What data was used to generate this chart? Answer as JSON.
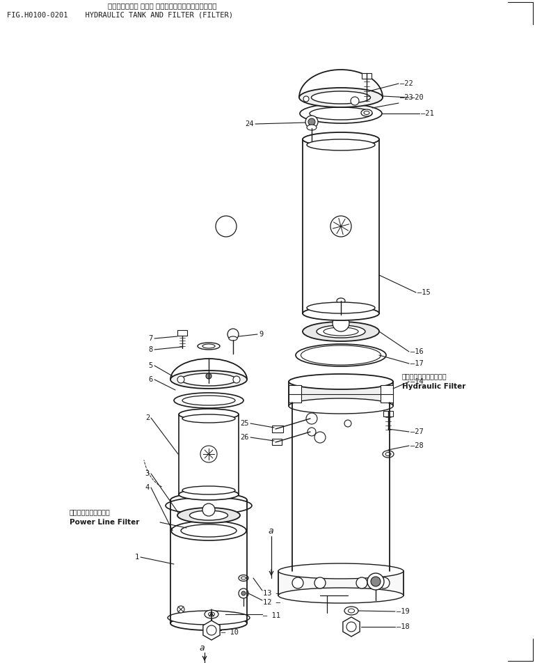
{
  "title_jp": "ハイドロリック タンク オヨビ　フィルタ（フィルタ）",
  "title_en": "FIG.H0100-0201    HYDRAULIC TANK AND FILTER (FILTER)",
  "bg_color": "#ffffff",
  "line_color": "#1a1a1a",
  "annotation_hydraulic_jp": "ハイドロリックフィルタ",
  "annotation_hydraulic_en": "Hydraulic Filter",
  "annotation_power_jp": "パワーラインフィルタ",
  "annotation_power_en": "Power Line Filter",
  "scale": [
    769,
    952
  ]
}
